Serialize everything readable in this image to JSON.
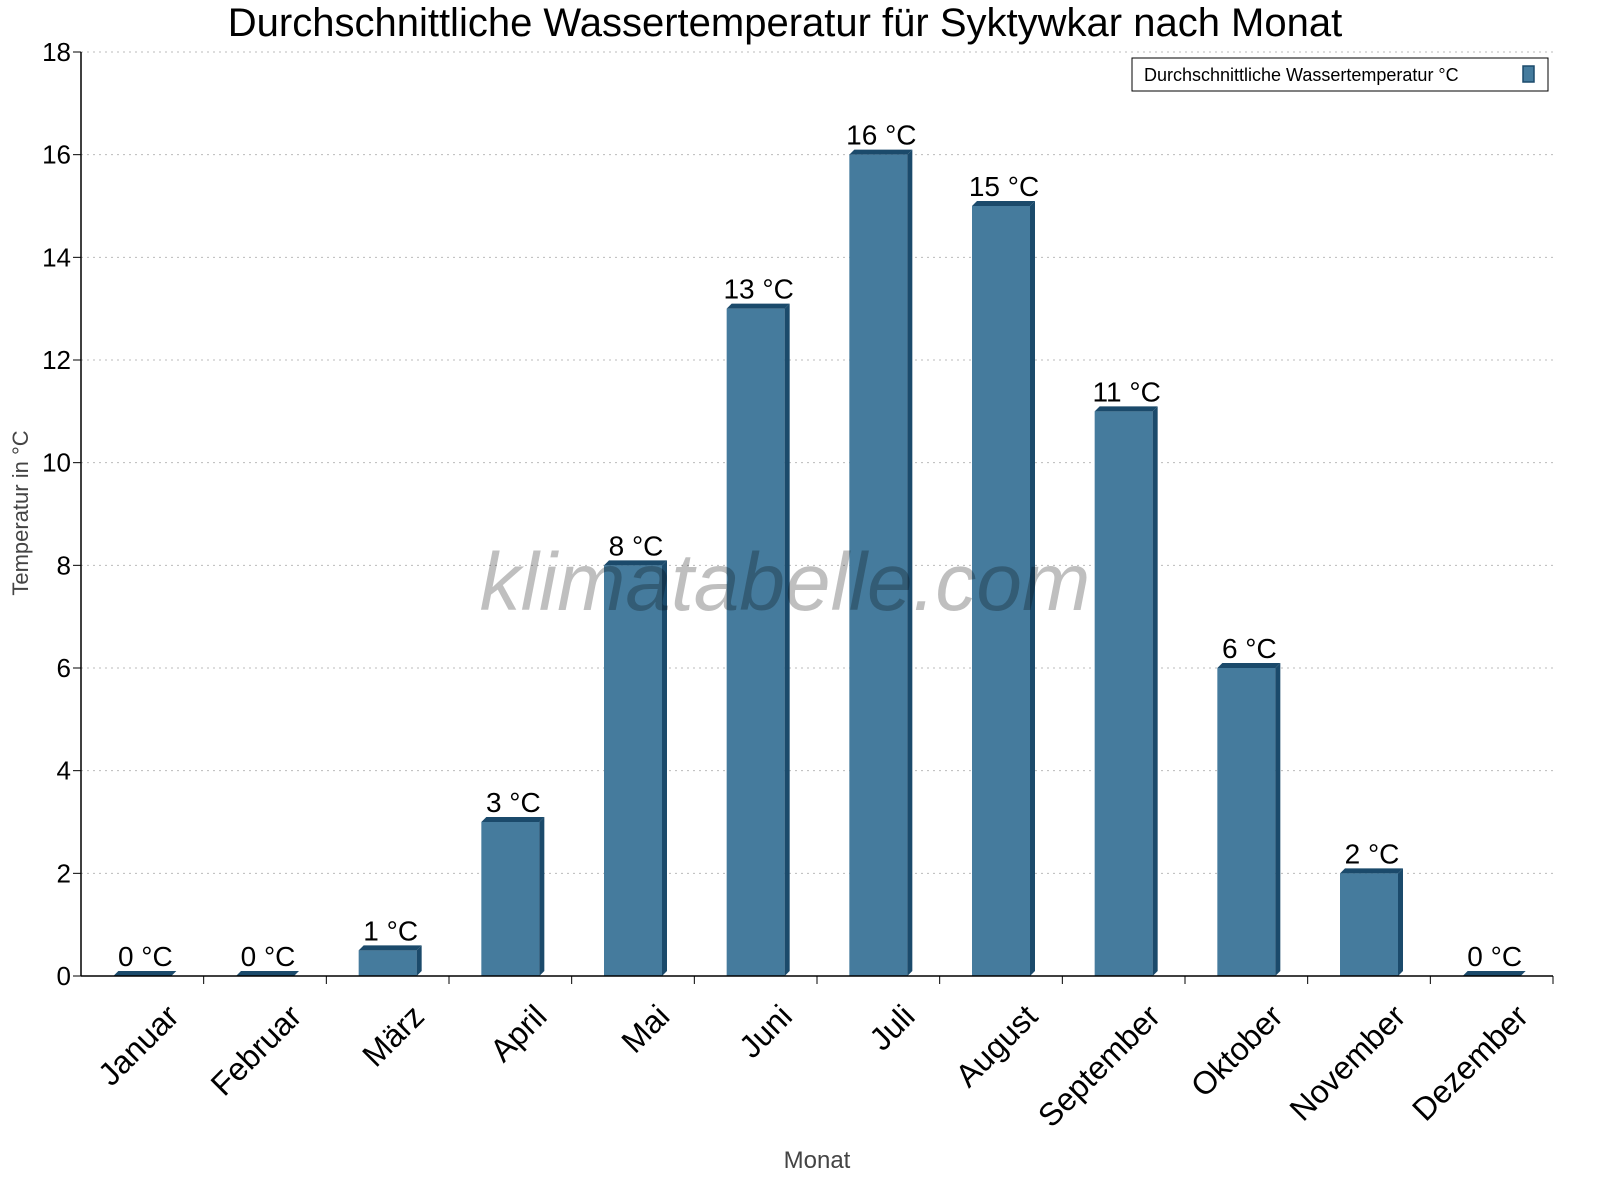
{
  "chart_data": {
    "type": "bar",
    "title": "Durchschnittliche Wassertemperatur für Syktywkar nach Monat",
    "xlabel": "Monat",
    "ylabel": "Temperatur in °C",
    "categories": [
      "Januar",
      "Februar",
      "März",
      "April",
      "Mai",
      "Juni",
      "Juli",
      "August",
      "September",
      "Oktober",
      "November",
      "Dezember"
    ],
    "series": [
      {
        "name": "Durchschnittliche Wassertemperatur °C",
        "values": [
          0,
          0,
          0.5,
          3,
          8,
          13,
          16,
          15,
          11,
          6,
          2,
          0
        ],
        "data_labels": [
          "0 °C",
          "0 °C",
          "1 °C",
          "3 °C",
          "8 °C",
          "13 °C",
          "16 °C",
          "15 °C",
          "11 °C",
          "6 °C",
          "2 °C",
          "0 °C"
        ],
        "color": "#457b9d",
        "edge_color": "#1b4a6b"
      }
    ],
    "ylim": [
      0,
      18
    ],
    "yticks": [
      "0",
      "2",
      "4",
      "6",
      "8",
      "10",
      "12",
      "14",
      "16",
      "18"
    ],
    "grid": true,
    "legend": "top-right",
    "watermark": "klimatabelle.com"
  }
}
